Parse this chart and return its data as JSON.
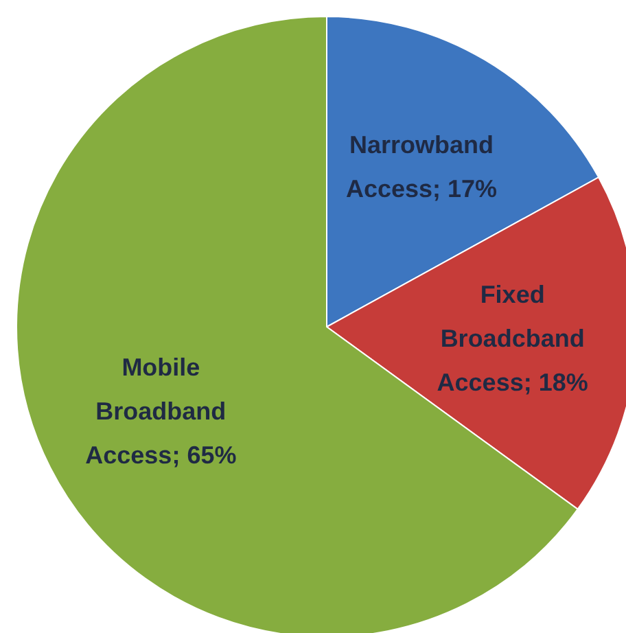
{
  "chart_data": {
    "type": "pie",
    "categories": [
      "Narrowband Access",
      "Fixed Broadcband Access",
      "Mobile Broadband Access"
    ],
    "values": [
      17,
      18,
      65
    ],
    "value_labels": [
      "17%",
      "18%",
      "65%"
    ],
    "colors": [
      "#3d76c0",
      "#c63c39",
      "#86ad3f"
    ]
  }
}
